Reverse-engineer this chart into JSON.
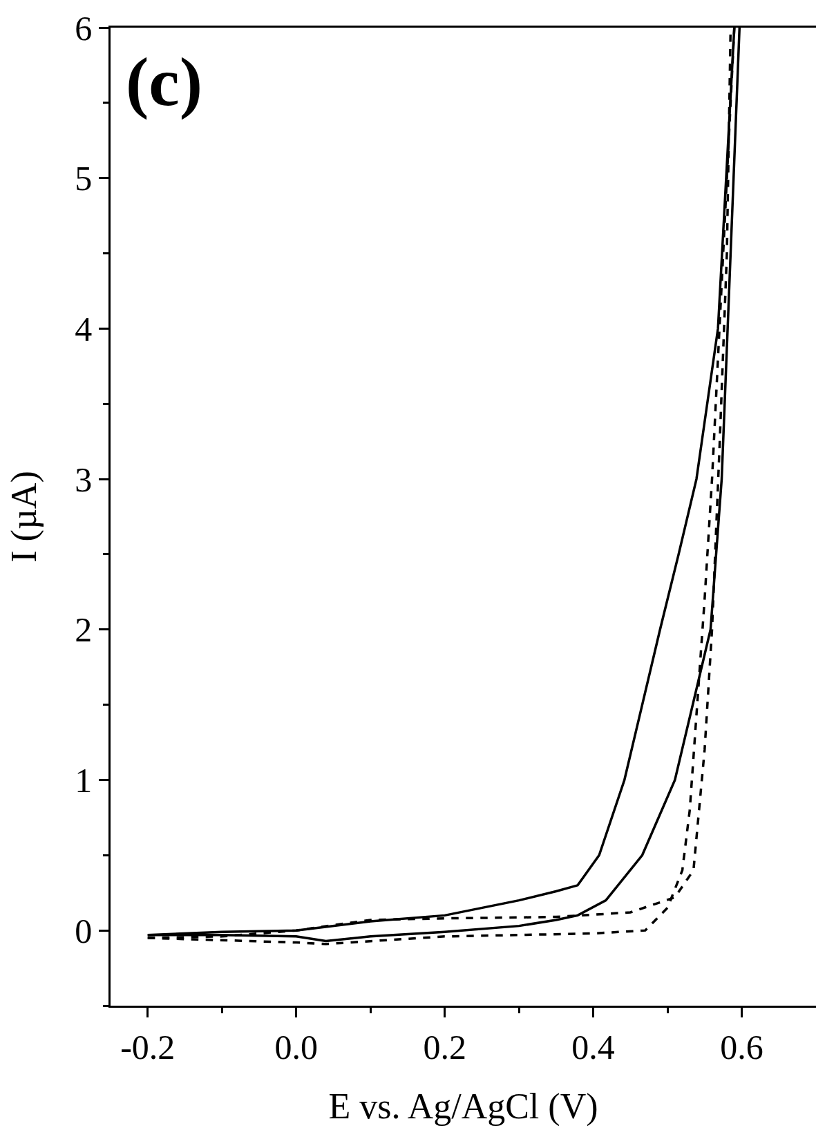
{
  "chart_data": {
    "type": "line",
    "xlabel": "E vs. Ag/AgCl (V)",
    "ylabel": "I (µA)",
    "annotations": [
      "(c)"
    ],
    "xlim": [
      -0.25,
      0.7
    ],
    "ylim": [
      -0.5,
      6
    ],
    "xticks": [
      {
        "value": -0.2,
        "label": "-0.2"
      },
      {
        "value": -0.1,
        "label": null
      },
      {
        "value": 0,
        "label": "0.0"
      },
      {
        "value": 0.1,
        "label": null
      },
      {
        "value": 0.2,
        "label": "0.2"
      },
      {
        "value": 0.3,
        "label": null
      },
      {
        "value": 0.4,
        "label": "0.4"
      },
      {
        "value": 0.5,
        "label": null
      },
      {
        "value": 0.6,
        "label": "0.6"
      }
    ],
    "yticks": [
      {
        "value": -0.5,
        "label": null
      },
      0,
      {
        "value": 0.5,
        "label": null
      },
      1,
      {
        "value": 1.5,
        "label": null
      },
      2,
      {
        "value": 2.5,
        "label": null
      },
      3,
      {
        "value": 3.5,
        "label": null
      },
      4,
      {
        "value": 4.5,
        "label": null
      },
      5,
      {
        "value": 5.5,
        "label": null
      },
      6
    ],
    "grid": false,
    "marker": "none",
    "series": [
      {
        "color": "#000000",
        "line_style": "solid",
        "x": [
          -0.2,
          -0.1,
          0.0,
          0.04,
          0.1,
          0.2,
          0.3,
          0.35,
          0.379,
          0.417,
          0.466,
          0.51,
          0.558,
          0.573,
          0.585,
          0.597
        ],
        "values": [
          -0.03,
          -0.03,
          -0.04,
          -0.07,
          -0.04,
          -0.01,
          0.03,
          0.07,
          0.1,
          0.2,
          0.5,
          1,
          2,
          3,
          4.5,
          6
        ]
      },
      {
        "color": "#000000",
        "line_style": "solid",
        "x": [
          -0.2,
          -0.1,
          0.0,
          0.1,
          0.2,
          0.3,
          0.35,
          0.379,
          0.408,
          0.442,
          0.466,
          0.49,
          0.515,
          0.539,
          0.568,
          0.59
        ],
        "values": [
          -0.03,
          -0.01,
          0.0,
          0.06,
          0.1,
          0.2,
          0.26,
          0.3,
          0.5,
          1,
          1.5,
          2,
          2.5,
          3,
          4,
          6
        ]
      },
      {
        "color": "#000000",
        "line_style": "dashed",
        "x": [
          -0.2,
          0.0,
          0.04,
          0.2,
          0.4,
          0.47,
          0.5,
          0.52,
          0.53,
          0.54,
          0.55,
          0.56,
          0.57,
          0.58,
          0.59
        ],
        "values": [
          -0.05,
          -0.08,
          -0.09,
          -0.04,
          -0.02,
          0.0,
          0.15,
          0.4,
          0.8,
          1.5,
          2.2,
          3.0,
          4.0,
          5.0,
          6.0
        ]
      },
      {
        "color": "#000000",
        "line_style": "dashed",
        "x": [
          -0.2,
          -0.1,
          0.0,
          0.1,
          0.2,
          0.35,
          0.45,
          0.51,
          0.535,
          0.55,
          0.56,
          0.57,
          0.58,
          0.585
        ],
        "values": [
          -0.05,
          -0.04,
          0.0,
          0.07,
          0.08,
          0.09,
          0.12,
          0.22,
          0.4,
          1.2,
          2.0,
          3.2,
          4.5,
          6.0
        ]
      }
    ]
  }
}
